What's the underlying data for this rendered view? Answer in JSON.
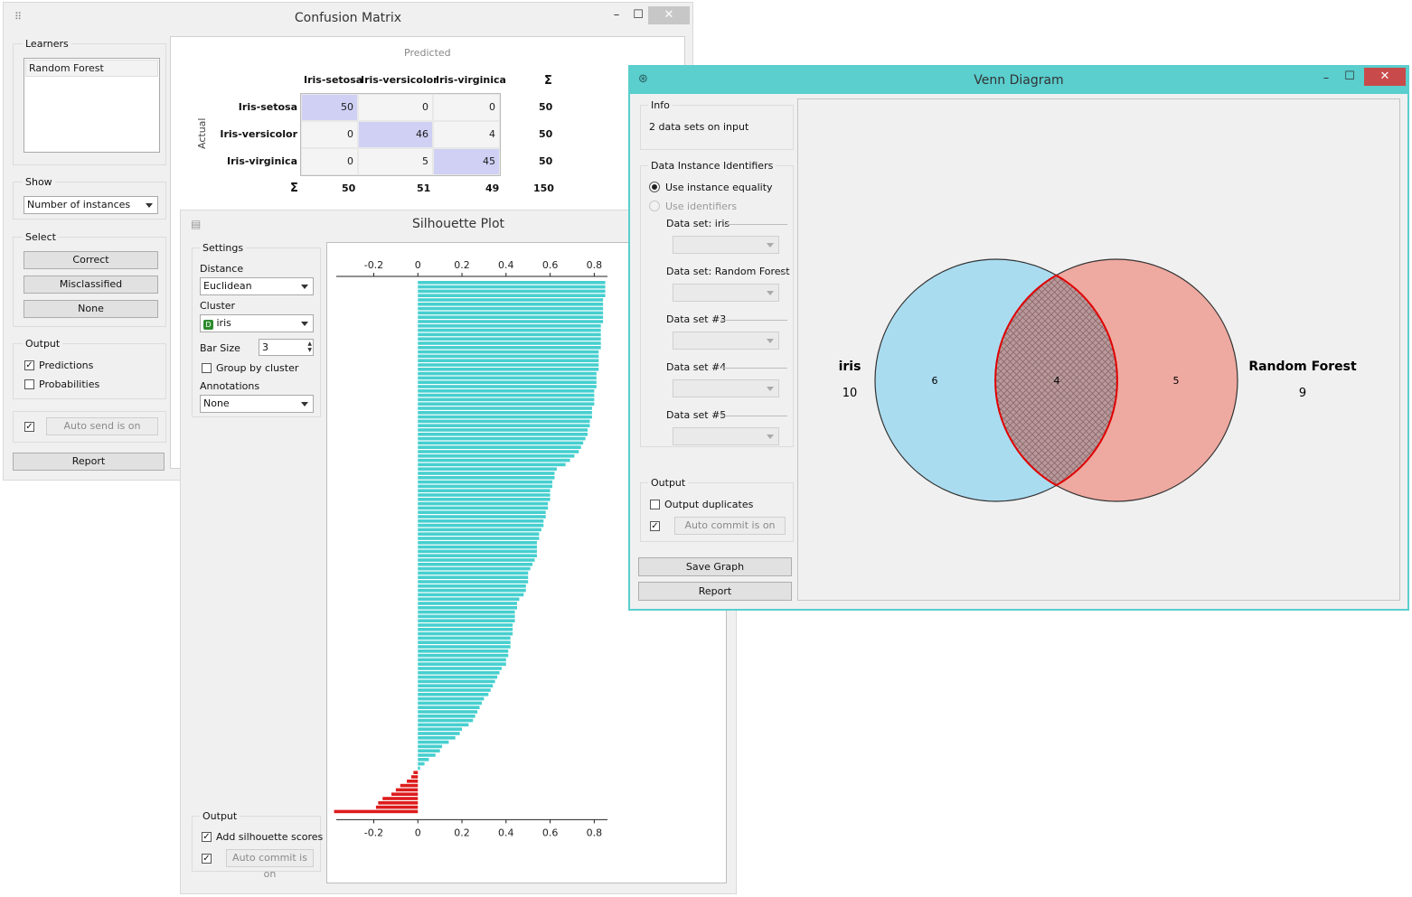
{
  "confusion": {
    "title": "Confusion Matrix",
    "learners_label": "Learners",
    "learners": [
      "Random Forest"
    ],
    "show_label": "Show",
    "show_value": "Number of instances",
    "select_label": "Select",
    "buttons": [
      "Correct",
      "Misclassified",
      "None"
    ],
    "output_label": "Output",
    "predictions_label": "Predictions",
    "probabilities_label": "Probabilities",
    "auto_send": "Auto send is on",
    "report": "Report",
    "predicted_label": "Predicted",
    "actual_label": "Actual",
    "sigma": "Σ",
    "classes": [
      "Iris-setosa",
      "Iris-versicolor",
      "Iris-virginica"
    ],
    "matrix": [
      [
        "50",
        "0",
        "0"
      ],
      [
        "0",
        "46",
        "4"
      ],
      [
        "0",
        "5",
        "45"
      ]
    ],
    "row_totals": [
      "50",
      "50",
      "50"
    ],
    "col_totals": [
      "50",
      "51",
      "49"
    ],
    "grand_total": "150"
  },
  "silhouette": {
    "title": "Silhouette Plot",
    "settings_label": "Settings",
    "distance_label": "Distance",
    "distance_value": "Euclidean",
    "cluster_label": "Cluster",
    "cluster_value": "iris",
    "bar_size_label": "Bar Size",
    "bar_size_value": "3",
    "group_by_cluster": "Group by cluster",
    "annotations_label": "Annotations",
    "annotations_value": "None",
    "output_label": "Output",
    "add_scores": "Add silhouette scores",
    "auto_commit": "Auto commit is on",
    "chart_data": {
      "type": "bar",
      "orientation": "horizontal",
      "xlim": [
        -0.37,
        0.86
      ],
      "ticks": [
        "-0.2",
        "0",
        "0.2",
        "0.4",
        "0.6",
        "0.8"
      ],
      "tick_values": [
        -0.2,
        0,
        0.2,
        0.4,
        0.6,
        0.8
      ],
      "values": [
        0.85,
        0.85,
        0.85,
        0.85,
        0.84,
        0.84,
        0.84,
        0.84,
        0.84,
        0.84,
        0.83,
        0.83,
        0.83,
        0.83,
        0.83,
        0.83,
        0.82,
        0.82,
        0.82,
        0.82,
        0.82,
        0.81,
        0.81,
        0.81,
        0.81,
        0.8,
        0.8,
        0.8,
        0.8,
        0.79,
        0.79,
        0.79,
        0.78,
        0.78,
        0.77,
        0.77,
        0.76,
        0.75,
        0.74,
        0.73,
        0.71,
        0.69,
        0.67,
        0.63,
        0.62,
        0.62,
        0.61,
        0.61,
        0.6,
        0.6,
        0.6,
        0.59,
        0.59,
        0.58,
        0.58,
        0.57,
        0.57,
        0.56,
        0.55,
        0.55,
        0.54,
        0.54,
        0.54,
        0.54,
        0.53,
        0.52,
        0.51,
        0.5,
        0.5,
        0.5,
        0.49,
        0.49,
        0.48,
        0.46,
        0.45,
        0.45,
        0.44,
        0.44,
        0.44,
        0.43,
        0.43,
        0.43,
        0.42,
        0.42,
        0.42,
        0.41,
        0.41,
        0.4,
        0.4,
        0.38,
        0.37,
        0.36,
        0.35,
        0.34,
        0.33,
        0.32,
        0.3,
        0.29,
        0.28,
        0.27,
        0.26,
        0.25,
        0.23,
        0.2,
        0.19,
        0.17,
        0.14,
        0.11,
        0.1,
        0.08,
        0.05,
        0.03,
        0.01,
        -0.02,
        -0.03,
        -0.05,
        -0.08,
        -0.1,
        -0.12,
        -0.16,
        -0.18,
        -0.19,
        -0.38
      ],
      "positive_color": "#47cfcf",
      "negative_color": "#dd1c1c"
    }
  },
  "venn": {
    "title": "Venn Diagram",
    "info_label": "Info",
    "info_text": "2 data sets on input",
    "identifiers_label": "Data Instance Identifiers",
    "use_equality": "Use instance equality",
    "use_identifiers": "Use identifiers",
    "datasets": [
      "Data set: iris",
      "Data set: Random Forest",
      "Data set #3",
      "Data set #4",
      "Data set #5"
    ],
    "output_label": "Output",
    "output_duplicates": "Output duplicates",
    "auto_commit": "Auto commit is on",
    "save_graph": "Save Graph",
    "report": "Report",
    "left_name": "iris",
    "left_total": "10",
    "right_name": "Random Forest",
    "right_total": "9",
    "left_only": "6",
    "intersection": "4",
    "right_only": "5",
    "left_color": "#aadcf0",
    "right_color": "#eea9a0",
    "accent": "#5bcece"
  }
}
